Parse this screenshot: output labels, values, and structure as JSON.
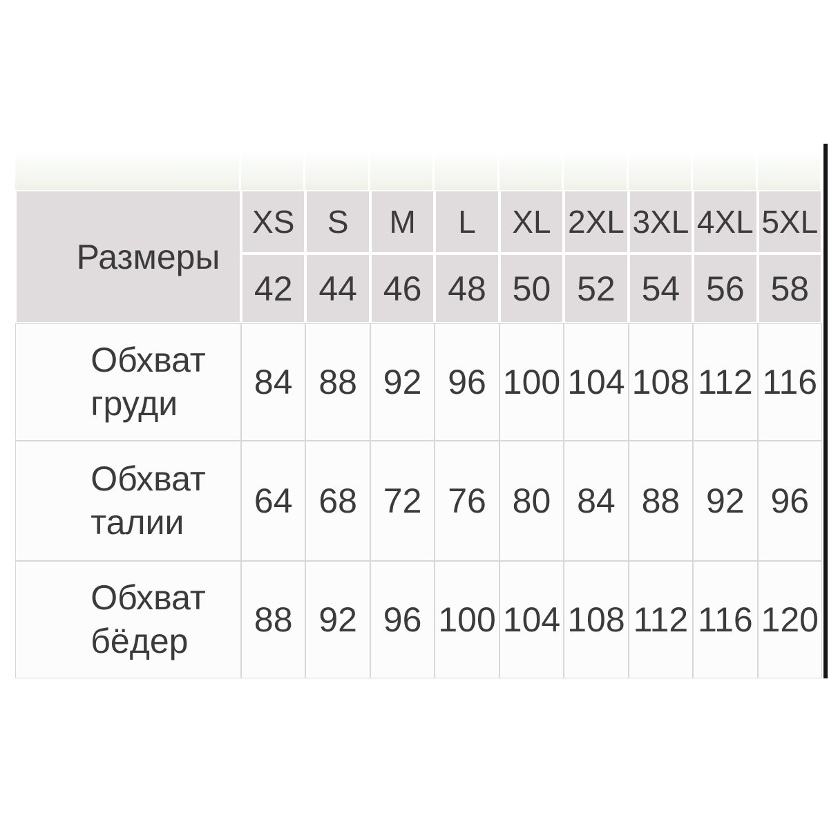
{
  "table": {
    "corner_label": "Размеры",
    "sizes": [
      "XS",
      "S",
      "M",
      "L",
      "XL",
      "2XL",
      "3XL",
      "4XL",
      "5XL"
    ],
    "size_numbers": [
      "42",
      "44",
      "46",
      "48",
      "50",
      "52",
      "54",
      "56",
      "58"
    ],
    "rows": [
      {
        "label": "Обхват\nгруди",
        "values": [
          "84",
          "88",
          "92",
          "96",
          "100",
          "104",
          "108",
          "112",
          "116"
        ]
      },
      {
        "label": "Обхват\nталии",
        "values": [
          "64",
          "68",
          "72",
          "76",
          "80",
          "84",
          "88",
          "92",
          "96"
        ]
      },
      {
        "label": "Обхват\nбёдер",
        "values": [
          "88",
          "92",
          "96",
          "100",
          "104",
          "108",
          "112",
          "116",
          "120"
        ]
      }
    ]
  },
  "colors": {
    "header_bg": "#e0dbdd",
    "body_bg": "#fcfcfc",
    "grid_border": "#d8d8d8",
    "text": "#3b3b3b",
    "edge_strip": "#161616"
  },
  "chart_data": {
    "type": "table",
    "title": "Размеры",
    "columns_international": [
      "XS",
      "S",
      "M",
      "L",
      "XL",
      "2XL",
      "3XL",
      "4XL",
      "5XL"
    ],
    "columns_russian": [
      42,
      44,
      46,
      48,
      50,
      52,
      54,
      56,
      58
    ],
    "rows": [
      {
        "label": "Обхват груди",
        "values": [
          84,
          88,
          92,
          96,
          100,
          104,
          108,
          112,
          116
        ]
      },
      {
        "label": "Обхват талии",
        "values": [
          64,
          68,
          72,
          76,
          80,
          84,
          88,
          92,
          96
        ]
      },
      {
        "label": "Обхват бёдер",
        "values": [
          88,
          92,
          96,
          100,
          104,
          108,
          112,
          116,
          120
        ]
      }
    ],
    "layout": {
      "grid": "on",
      "header_rows": 2,
      "legend_position": "none"
    }
  }
}
